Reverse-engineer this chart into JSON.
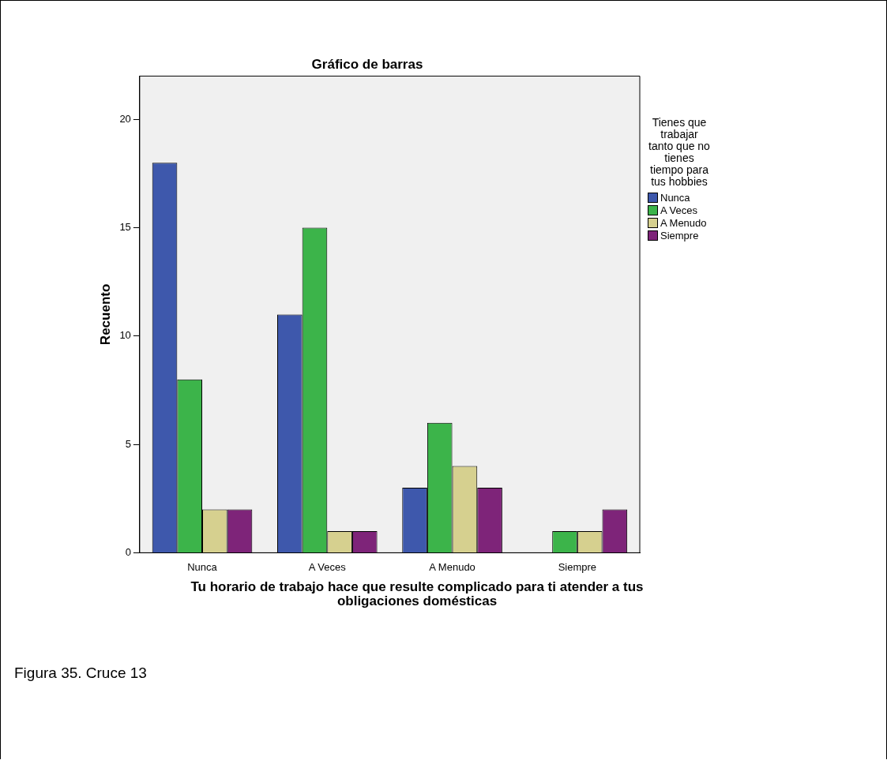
{
  "chart_data": {
    "type": "bar",
    "title": "Gráfico de barras",
    "xlabel": "Tu horario de trabajo hace que resulte complicado para ti atender a tus obligaciones domésticas",
    "ylabel": "Recuento",
    "legend_title": "Tienes que trabajar tanto que no tienes tiempo para tus hobbies",
    "categories": [
      "Nunca",
      "A Veces",
      "A Menudo",
      "Siempre"
    ],
    "series": [
      {
        "name": "Nunca",
        "color": "#3e58ac",
        "values": [
          18,
          11,
          3,
          null
        ]
      },
      {
        "name": "A Veces",
        "color": "#3cb44a",
        "values": [
          8,
          15,
          6,
          1
        ]
      },
      {
        "name": "A Menudo",
        "color": "#d6d08f",
        "values": [
          2,
          1,
          4,
          1
        ]
      },
      {
        "name": "Siempre",
        "color": "#7e2479",
        "values": [
          2,
          1,
          3,
          2
        ]
      }
    ],
    "ylim": [
      0,
      22
    ],
    "yticks": [
      0,
      5,
      10,
      15,
      20
    ],
    "grid": false,
    "legend": "right",
    "annotations": [
      "Figura 35. Cruce 13"
    ]
  }
}
